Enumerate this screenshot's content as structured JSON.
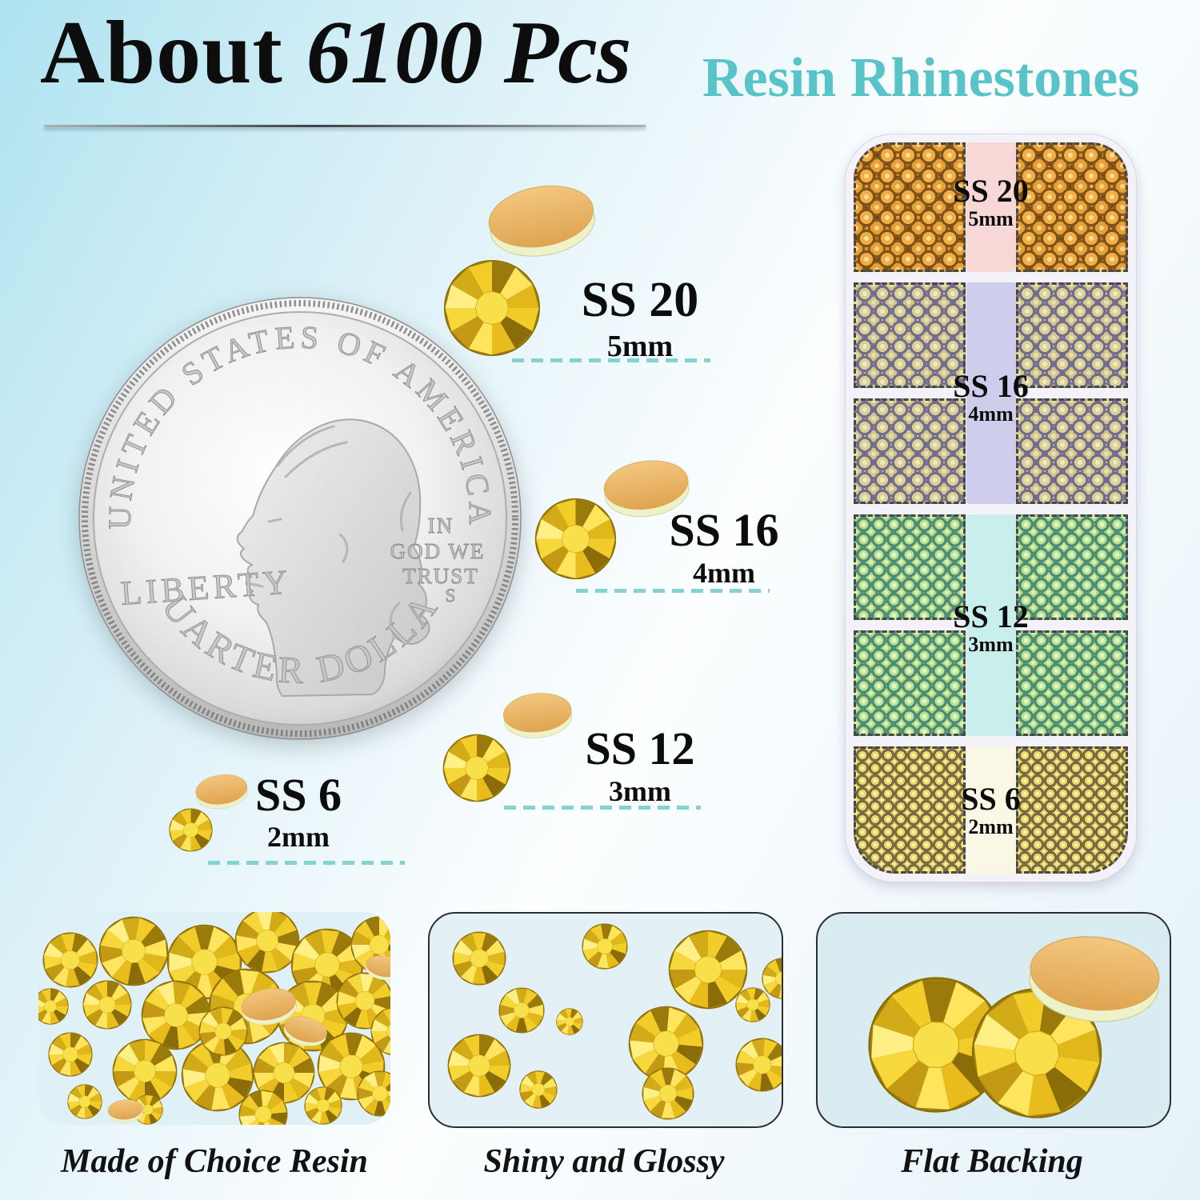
{
  "header": {
    "title_word": "About",
    "title_count": "6100 Pcs",
    "subtitle": "Resin Rhinestones",
    "accent_color": "#58c3c8"
  },
  "coin": {
    "top_arc": "UNITED STATES OF AMERICA",
    "liberty": "LIBERTY",
    "motto": [
      "IN",
      "GOD WE",
      "TRUST"
    ],
    "mint_mark": "S",
    "bottom_arc": "QUARTER DOLLAR"
  },
  "sizes": [
    {
      "label": "SS 20",
      "mm": "5mm"
    },
    {
      "label": "SS 16",
      "mm": "4mm"
    },
    {
      "label": "SS 12",
      "mm": "3mm"
    },
    {
      "label": "SS 6",
      "mm": "2mm"
    }
  ],
  "case": {
    "strip_colors": {
      "ss20": "#f8d8d6",
      "ss16": "#cfcdec",
      "ss12": "#c9efec",
      "ss6": "#faf8e4"
    }
  },
  "features": [
    {
      "caption": "Made of Choice Resin"
    },
    {
      "caption": "Shiny and Glossy"
    },
    {
      "caption": "Flat Backing"
    }
  ],
  "colors": {
    "rhinestone_gold": "#f2cd2a",
    "flat_back_tan": "#e8b464",
    "dash_teal": "#84d3d1"
  }
}
